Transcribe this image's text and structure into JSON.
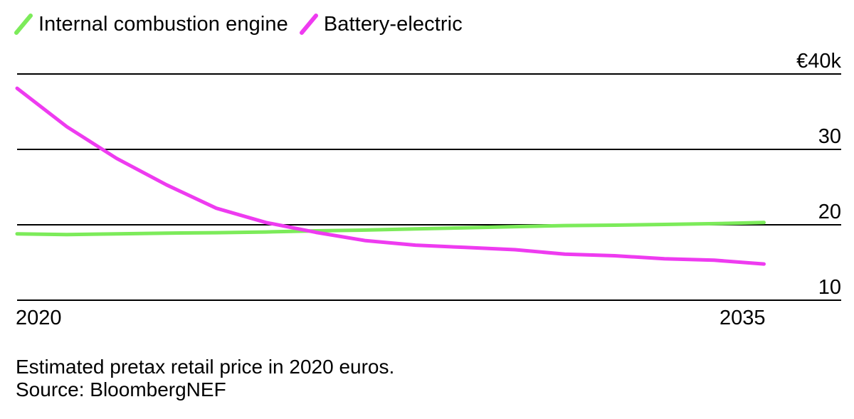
{
  "chart_data": {
    "type": "line",
    "title": "",
    "xlabel": "",
    "ylabel": "",
    "x": [
      2020,
      2021,
      2022,
      2023,
      2024,
      2025,
      2026,
      2027,
      2028,
      2029,
      2030,
      2031,
      2032,
      2033,
      2034,
      2035
    ],
    "x_tick_labels": [
      {
        "value": 2020,
        "label": "2020"
      },
      {
        "value": 2035,
        "label": "2035"
      }
    ],
    "y_tick_labels": [
      {
        "value": 10,
        "label": "10"
      },
      {
        "value": 20,
        "label": "20"
      },
      {
        "value": 30,
        "label": "30"
      },
      {
        "value": 40,
        "label": "€40k"
      }
    ],
    "xlim": [
      2020,
      2036.55
    ],
    "ylim": [
      10,
      40
    ],
    "grid": true,
    "legend_position": "top-left",
    "series": [
      {
        "name": "Internal combustion engine",
        "color": "#7CEB5A",
        "values": [
          18.8,
          18.7,
          18.8,
          18.9,
          18.95,
          19.05,
          19.2,
          19.3,
          19.45,
          19.6,
          19.75,
          19.9,
          19.95,
          20.05,
          20.15,
          20.3
        ]
      },
      {
        "name": "Battery-electric",
        "color": "#EE3BF0",
        "values": [
          38.1,
          33.0,
          28.8,
          25.3,
          22.2,
          20.3,
          19.0,
          17.9,
          17.3,
          17.0,
          16.7,
          16.1,
          15.9,
          15.5,
          15.3,
          14.8
        ]
      }
    ]
  },
  "note": {
    "line1": "Estimated pretax retail price in 2020 euros.",
    "line2": "Source: BloombergNEF"
  }
}
